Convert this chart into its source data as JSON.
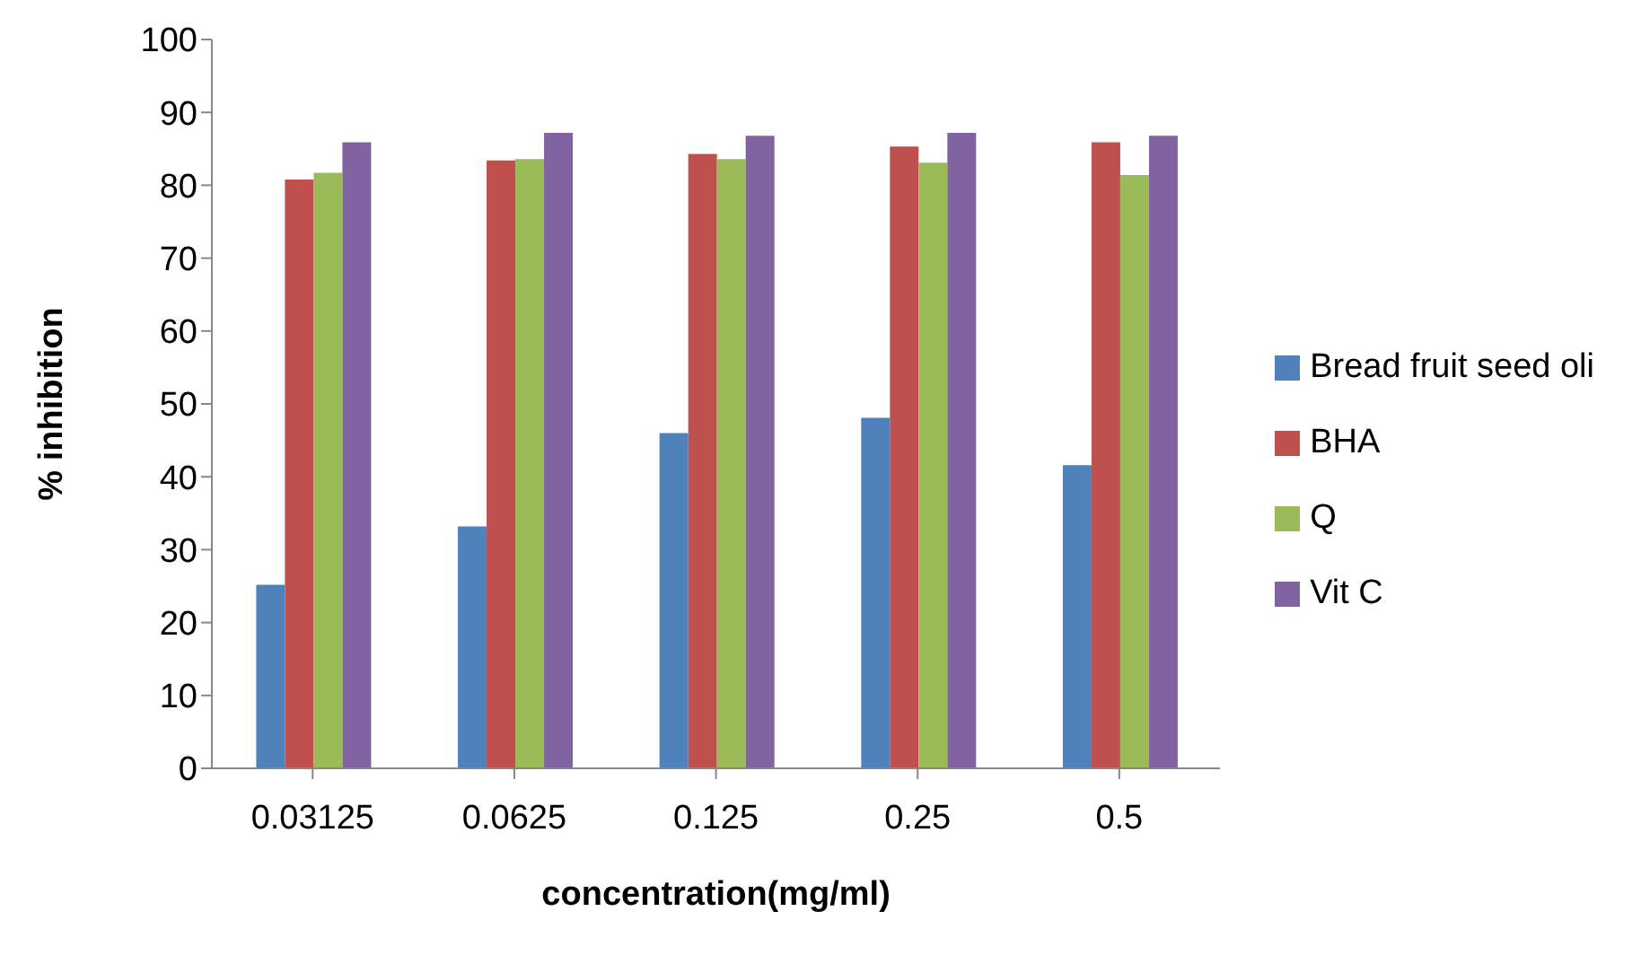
{
  "chart_data": {
    "type": "bar",
    "xlabel": "concentration(mg/ml)",
    "ylabel": "% inhibition",
    "categories": [
      "0.03125",
      "0.0625",
      "0.125",
      "0.25",
      "0.5"
    ],
    "series": [
      {
        "name": "Bread fruit seed oli",
        "color": "#4f81bd",
        "values": [
          25.2,
          33.2,
          46.0,
          48.1,
          41.6
        ]
      },
      {
        "name": "BHA",
        "color": "#c0504d",
        "values": [
          80.8,
          83.4,
          84.3,
          85.3,
          85.9
        ]
      },
      {
        "name": "Q",
        "color": "#9bbb59",
        "values": [
          81.7,
          83.6,
          83.6,
          83.1,
          81.4
        ]
      },
      {
        "name": "Vit C",
        "color": "#8064a2",
        "values": [
          85.9,
          87.2,
          86.8,
          87.2,
          86.8
        ]
      }
    ],
    "ylim": [
      0,
      100
    ],
    "yticks": [
      0,
      10,
      20,
      30,
      40,
      50,
      60,
      70,
      80,
      90,
      100
    ],
    "grid": false,
    "legend": "right"
  }
}
